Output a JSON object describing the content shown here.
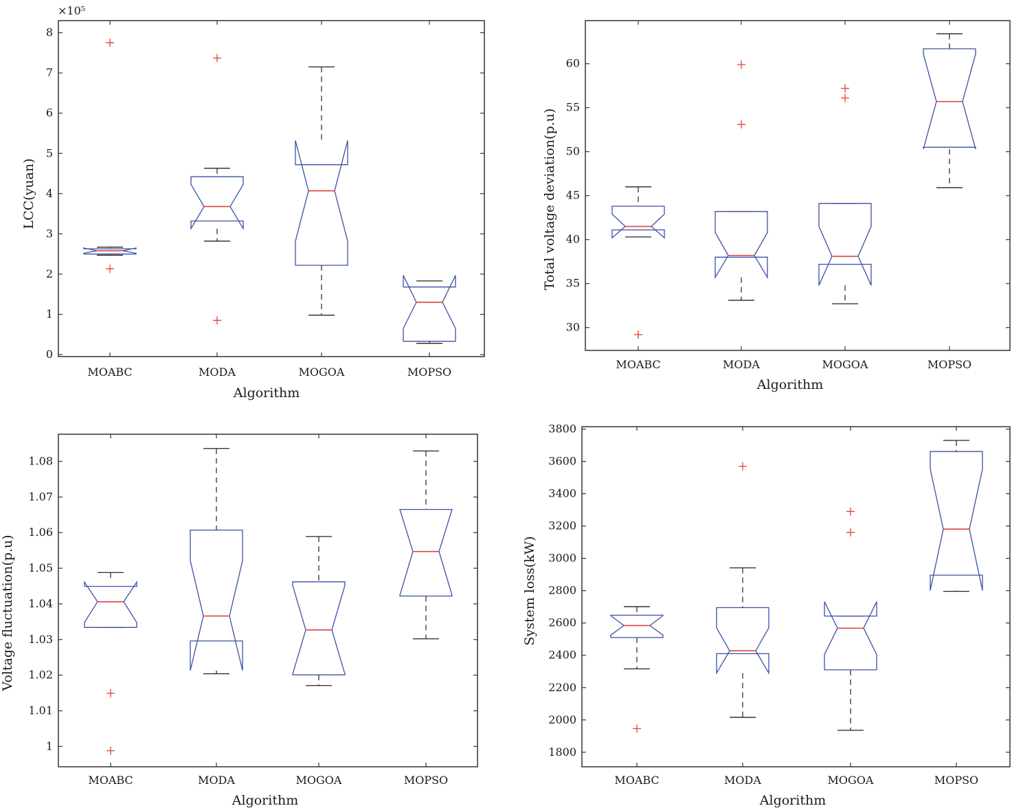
{
  "colors": {
    "box": "#3a4fa8",
    "median": "#e0413a",
    "whisker": "#222222",
    "outlier": "#e0413a",
    "axis": "#333333"
  },
  "chart_data": [
    {
      "type": "box",
      "id": "lcc",
      "xlabel": "Algorithm",
      "ylabel": "LCC(yuan)",
      "scale_label": "×10⁵",
      "categories": [
        "MOABC",
        "MODA",
        "MOGOA",
        "MOPSO"
      ],
      "ylim": [
        -0.05,
        8.3
      ],
      "yticks": [
        0,
        1,
        2,
        3,
        4,
        5,
        6,
        7,
        8
      ],
      "ytick_labels": [
        "0",
        "1",
        "2",
        "3",
        "4",
        "5",
        "6",
        "7",
        "8"
      ],
      "boxes": [
        {
          "q1": 2.5,
          "median": 2.58,
          "q3": 2.63,
          "whisker_low": 2.47,
          "whisker_high": 2.67,
          "notch_low": 2.52,
          "notch_high": 2.65,
          "outliers": [
            7.75,
            2.13
          ]
        },
        {
          "q1": 3.32,
          "median": 3.68,
          "q3": 4.42,
          "whisker_low": 2.82,
          "whisker_high": 4.63,
          "notch_low": 3.13,
          "notch_high": 4.23,
          "outliers": [
            7.37,
            0.85
          ]
        },
        {
          "q1": 2.22,
          "median": 4.07,
          "q3": 4.72,
          "whisker_low": 0.98,
          "whisker_high": 7.15,
          "notch_low": 2.82,
          "notch_high": 5.32,
          "outliers": []
        },
        {
          "q1": 0.33,
          "median": 1.3,
          "q3": 1.68,
          "whisker_low": 0.28,
          "whisker_high": 1.83,
          "notch_low": 0.65,
          "notch_high": 1.97,
          "outliers": []
        }
      ]
    },
    {
      "type": "box",
      "id": "voltage-deviation",
      "xlabel": "Algorithm",
      "ylabel": "Total voltage deviation(p.u)",
      "categories": [
        "MOABC",
        "MODA",
        "MOGOA",
        "MOPSO"
      ],
      "ylim": [
        27.4,
        64.9
      ],
      "yticks": [
        30,
        35,
        40,
        45,
        50,
        55,
        60
      ],
      "ytick_labels": [
        "30",
        "35",
        "40",
        "45",
        "50",
        "55",
        "60"
      ],
      "boxes": [
        {
          "q1": 41.1,
          "median": 41.5,
          "q3": 43.8,
          "whisker_low": 40.3,
          "whisker_high": 46.0,
          "notch_low": 40.2,
          "notch_high": 42.9,
          "outliers": [
            29.2
          ]
        },
        {
          "q1": 38.0,
          "median": 38.2,
          "q3": 43.2,
          "whisker_low": 33.1,
          "whisker_high": 43.2,
          "notch_low": 35.7,
          "notch_high": 40.8,
          "outliers": [
            59.9,
            53.1
          ]
        },
        {
          "q1": 37.2,
          "median": 38.1,
          "q3": 44.1,
          "whisker_low": 32.7,
          "whisker_high": 44.1,
          "notch_low": 34.8,
          "notch_high": 41.5,
          "outliers": [
            57.2,
            56.1
          ]
        },
        {
          "q1": 50.5,
          "median": 55.7,
          "q3": 61.7,
          "whisker_low": 45.9,
          "whisker_high": 63.4,
          "notch_low": 50.3,
          "notch_high": 61.1,
          "outliers": []
        }
      ]
    },
    {
      "type": "box",
      "id": "voltage-fluctuation",
      "xlabel": "Algorithm",
      "ylabel": "Voltage fluctuation(p.u)",
      "categories": [
        "MOABC",
        "MODA",
        "MOGOA",
        "MOPSO"
      ],
      "ylim": [
        0.9943,
        1.0876
      ],
      "yticks": [
        1.0,
        1.01,
        1.02,
        1.03,
        1.04,
        1.05,
        1.06,
        1.07,
        1.08
      ],
      "ytick_labels": [
        "1",
        "1.01",
        "1.02",
        "1.03",
        "1.04",
        "1.05",
        "1.06",
        "1.07",
        "1.08"
      ],
      "boxes": [
        {
          "q1": 1.0334,
          "median": 1.0406,
          "q3": 1.0449,
          "whisker_low": 1.0334,
          "whisker_high": 1.0488,
          "notch_low": 1.0348,
          "notch_high": 1.0461,
          "outliers": [
            1.0149,
            0.9988
          ]
        },
        {
          "q1": 1.0296,
          "median": 1.0366,
          "q3": 1.0607,
          "whisker_low": 1.0204,
          "whisker_high": 1.0836,
          "notch_low": 1.0213,
          "notch_high": 1.0521,
          "outliers": []
        },
        {
          "q1": 1.0201,
          "median": 1.0327,
          "q3": 1.0462,
          "whisker_low": 1.0171,
          "whisker_high": 1.0589,
          "notch_low": 1.0203,
          "notch_high": 1.0452,
          "outliers": []
        },
        {
          "q1": 1.0422,
          "median": 1.0547,
          "q3": 1.0665,
          "whisker_low": 1.0302,
          "whisker_high": 1.0829,
          "notch_low": 1.0424,
          "notch_high": 1.0665,
          "outliers": []
        }
      ]
    },
    {
      "type": "box",
      "id": "system-loss",
      "xlabel": "Algorithm",
      "ylabel": "System loss(kW)",
      "categories": [
        "MOABC",
        "MODA",
        "MOGOA",
        "MOPSO"
      ],
      "ylim": [
        1710,
        3815
      ],
      "yticks": [
        1800,
        2000,
        2200,
        2400,
        2600,
        2800,
        3000,
        3200,
        3400,
        3600,
        3800
      ],
      "ytick_labels": [
        "1800",
        "2000",
        "2200",
        "2400",
        "2600",
        "2800",
        "3000",
        "3200",
        "3400",
        "3600",
        "3800"
      ],
      "boxes": [
        {
          "q1": 2510,
          "median": 2584,
          "q3": 2648,
          "whisker_low": 2316,
          "whisker_high": 2701,
          "notch_low": 2525,
          "notch_high": 2645,
          "outliers": [
            1946
          ]
        },
        {
          "q1": 2410,
          "median": 2428,
          "q3": 2695,
          "whisker_low": 2016,
          "whisker_high": 2941,
          "notch_low": 2290,
          "notch_high": 2570,
          "outliers": [
            3570
          ]
        },
        {
          "q1": 2310,
          "median": 2568,
          "q3": 2643,
          "whisker_low": 1936,
          "whisker_high": 2643,
          "notch_low": 2405,
          "notch_high": 2732,
          "outliers": [
            3290,
            3161
          ]
        },
        {
          "q1": 2896,
          "median": 3181,
          "q3": 3661,
          "whisker_low": 2796,
          "whisker_high": 3730,
          "notch_low": 2801,
          "notch_high": 3553,
          "outliers": []
        }
      ]
    }
  ]
}
